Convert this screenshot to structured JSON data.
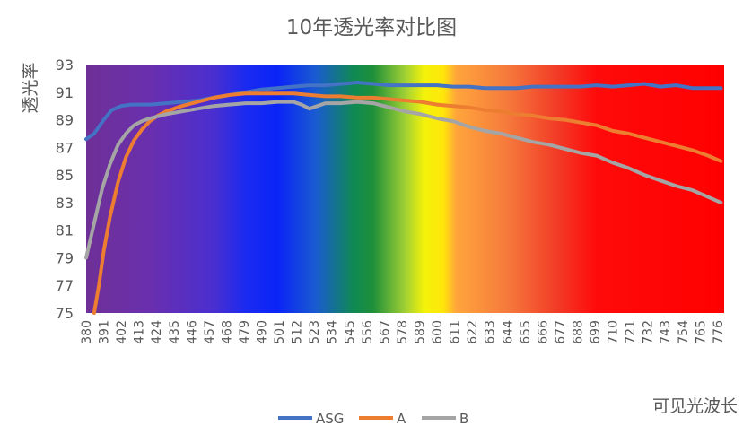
{
  "chart_data": {
    "type": "line",
    "title": "10年透光率对比图",
    "xlabel": "可见光波长",
    "ylabel": "透光率",
    "xlim": [
      380,
      780
    ],
    "ylim": [
      75,
      93
    ],
    "yticks": [
      75,
      77,
      79,
      81,
      83,
      85,
      87,
      89,
      91,
      93
    ],
    "xtick_labels": [
      "380",
      "391",
      "402",
      "413",
      "424",
      "435",
      "446",
      "457",
      "468",
      "479",
      "490",
      "501",
      "512",
      "523",
      "534",
      "545",
      "556",
      "567",
      "578",
      "589",
      "600",
      "611",
      "622",
      "633",
      "644",
      "655",
      "666",
      "677",
      "688",
      "699",
      "710",
      "721",
      "732",
      "743",
      "754",
      "765",
      "776"
    ],
    "grid": false,
    "legend_position": "bottom",
    "background": "visible spectrum gradient",
    "series": [
      {
        "name": "ASG",
        "color": "#4472C4",
        "points": [
          [
            380,
            87.6
          ],
          [
            385,
            88.0
          ],
          [
            391,
            89.0
          ],
          [
            396,
            89.7
          ],
          [
            402,
            90.0
          ],
          [
            408,
            90.1
          ],
          [
            413,
            90.1
          ],
          [
            420,
            90.1
          ],
          [
            430,
            90.2
          ],
          [
            440,
            90.3
          ],
          [
            450,
            90.4
          ],
          [
            460,
            90.6
          ],
          [
            470,
            90.8
          ],
          [
            480,
            91.0
          ],
          [
            490,
            91.2
          ],
          [
            500,
            91.3
          ],
          [
            510,
            91.4
          ],
          [
            520,
            91.5
          ],
          [
            530,
            91.5
          ],
          [
            540,
            91.6
          ],
          [
            550,
            91.7
          ],
          [
            560,
            91.6
          ],
          [
            570,
            91.5
          ],
          [
            580,
            91.5
          ],
          [
            590,
            91.5
          ],
          [
            600,
            91.5
          ],
          [
            610,
            91.4
          ],
          [
            620,
            91.4
          ],
          [
            630,
            91.3
          ],
          [
            640,
            91.3
          ],
          [
            650,
            91.3
          ],
          [
            660,
            91.4
          ],
          [
            670,
            91.4
          ],
          [
            680,
            91.4
          ],
          [
            690,
            91.4
          ],
          [
            700,
            91.5
          ],
          [
            710,
            91.4
          ],
          [
            720,
            91.5
          ],
          [
            730,
            91.6
          ],
          [
            740,
            91.4
          ],
          [
            750,
            91.5
          ],
          [
            760,
            91.3
          ],
          [
            770,
            91.3
          ],
          [
            778,
            91.3
          ]
        ]
      },
      {
        "name": "A",
        "color": "#ED7D31",
        "points": [
          [
            385,
            75.0
          ],
          [
            388,
            77.0
          ],
          [
            391,
            79.5
          ],
          [
            395,
            82.0
          ],
          [
            400,
            84.5
          ],
          [
            405,
            86.3
          ],
          [
            410,
            87.5
          ],
          [
            415,
            88.3
          ],
          [
            420,
            88.9
          ],
          [
            425,
            89.3
          ],
          [
            430,
            89.6
          ],
          [
            440,
            90.0
          ],
          [
            450,
            90.3
          ],
          [
            460,
            90.6
          ],
          [
            470,
            90.8
          ],
          [
            480,
            90.9
          ],
          [
            490,
            90.9
          ],
          [
            500,
            90.9
          ],
          [
            510,
            90.9
          ],
          [
            520,
            90.8
          ],
          [
            530,
            90.7
          ],
          [
            540,
            90.7
          ],
          [
            550,
            90.6
          ],
          [
            560,
            90.6
          ],
          [
            570,
            90.5
          ],
          [
            580,
            90.4
          ],
          [
            590,
            90.3
          ],
          [
            600,
            90.1
          ],
          [
            610,
            90.0
          ],
          [
            620,
            89.9
          ],
          [
            630,
            89.7
          ],
          [
            640,
            89.6
          ],
          [
            650,
            89.4
          ],
          [
            660,
            89.3
          ],
          [
            670,
            89.1
          ],
          [
            680,
            89.0
          ],
          [
            690,
            88.8
          ],
          [
            700,
            88.6
          ],
          [
            710,
            88.2
          ],
          [
            720,
            88.0
          ],
          [
            730,
            87.7
          ],
          [
            740,
            87.4
          ],
          [
            750,
            87.1
          ],
          [
            760,
            86.8
          ],
          [
            770,
            86.4
          ],
          [
            778,
            86.0
          ]
        ]
      },
      {
        "name": "B",
        "color": "#A5A5A5",
        "points": [
          [
            380,
            79.0
          ],
          [
            383,
            80.5
          ],
          [
            386,
            82.0
          ],
          [
            390,
            84.0
          ],
          [
            395,
            85.8
          ],
          [
            400,
            87.2
          ],
          [
            405,
            88.0
          ],
          [
            410,
            88.6
          ],
          [
            415,
            88.9
          ],
          [
            420,
            89.1
          ],
          [
            430,
            89.4
          ],
          [
            440,
            89.6
          ],
          [
            450,
            89.8
          ],
          [
            460,
            90.0
          ],
          [
            470,
            90.1
          ],
          [
            480,
            90.2
          ],
          [
            490,
            90.2
          ],
          [
            500,
            90.3
          ],
          [
            510,
            90.3
          ],
          [
            515,
            90.1
          ],
          [
            520,
            89.8
          ],
          [
            525,
            90.0
          ],
          [
            530,
            90.2
          ],
          [
            540,
            90.2
          ],
          [
            550,
            90.3
          ],
          [
            560,
            90.2
          ],
          [
            570,
            89.9
          ],
          [
            580,
            89.6
          ],
          [
            590,
            89.4
          ],
          [
            600,
            89.1
          ],
          [
            610,
            88.9
          ],
          [
            620,
            88.5
          ],
          [
            630,
            88.2
          ],
          [
            640,
            88.0
          ],
          [
            650,
            87.7
          ],
          [
            660,
            87.4
          ],
          [
            670,
            87.2
          ],
          [
            680,
            86.9
          ],
          [
            690,
            86.6
          ],
          [
            700,
            86.4
          ],
          [
            710,
            85.9
          ],
          [
            720,
            85.5
          ],
          [
            730,
            85.0
          ],
          [
            740,
            84.6
          ],
          [
            750,
            84.2
          ],
          [
            760,
            83.9
          ],
          [
            770,
            83.4
          ],
          [
            778,
            83.0
          ]
        ]
      }
    ]
  }
}
